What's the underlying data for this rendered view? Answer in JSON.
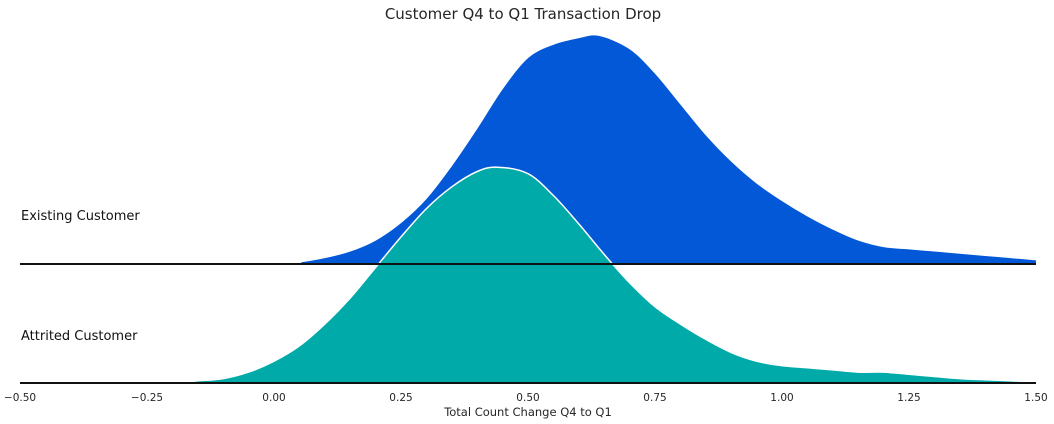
{
  "chart_data": {
    "type": "area",
    "title": "Customer Q4 to Q1 Transaction Drop",
    "xlabel": "Total Count Change Q4 to Q1",
    "ylabel": "",
    "xlim": [
      -0.5,
      1.5
    ],
    "x_ticks": [
      "−0.50",
      "−0.25",
      "0.00",
      "0.25",
      "0.50",
      "0.75",
      "1.00",
      "1.25",
      "1.50"
    ],
    "x_tick_values": [
      -0.5,
      -0.25,
      0.0,
      0.25,
      0.5,
      0.75,
      1.0,
      1.25,
      1.5
    ],
    "grid": false,
    "legend": "none",
    "series": [
      {
        "name": "Existing Customer",
        "color": "#0358d8",
        "x": [
          -0.5,
          0.0,
          0.05,
          0.1,
          0.15,
          0.2,
          0.25,
          0.3,
          0.35,
          0.4,
          0.45,
          0.5,
          0.55,
          0.6,
          0.64,
          0.7,
          0.75,
          0.8,
          0.85,
          0.9,
          0.95,
          1.0,
          1.05,
          1.1,
          1.15,
          1.2,
          1.25,
          1.3,
          1.35,
          1.4,
          1.45,
          1.5
        ],
        "density": [
          0.0,
          0.0,
          0.01,
          0.03,
          0.06,
          0.11,
          0.19,
          0.3,
          0.45,
          0.62,
          0.8,
          0.94,
          1.0,
          1.03,
          1.04,
          0.98,
          0.87,
          0.73,
          0.59,
          0.47,
          0.37,
          0.29,
          0.22,
          0.16,
          0.11,
          0.08,
          0.07,
          0.06,
          0.05,
          0.04,
          0.03,
          0.02
        ]
      },
      {
        "name": "Attrited Customer",
        "color": "#00aaa8",
        "x": [
          -0.5,
          -0.2,
          -0.15,
          -0.1,
          -0.05,
          0.0,
          0.05,
          0.1,
          0.15,
          0.2,
          0.25,
          0.3,
          0.35,
          0.4,
          0.44,
          0.5,
          0.55,
          0.6,
          0.65,
          0.7,
          0.75,
          0.8,
          0.85,
          0.9,
          0.95,
          1.0,
          1.05,
          1.1,
          1.15,
          1.2,
          1.25,
          1.3,
          1.35,
          1.4,
          1.45,
          1.5
        ],
        "density": [
          0.0,
          0.0,
          0.01,
          0.02,
          0.05,
          0.1,
          0.17,
          0.27,
          0.39,
          0.53,
          0.67,
          0.8,
          0.9,
          0.97,
          0.99,
          0.96,
          0.86,
          0.73,
          0.59,
          0.46,
          0.35,
          0.27,
          0.2,
          0.14,
          0.1,
          0.08,
          0.07,
          0.06,
          0.05,
          0.05,
          0.04,
          0.03,
          0.02,
          0.015,
          0.01,
          0.005
        ]
      }
    ]
  }
}
